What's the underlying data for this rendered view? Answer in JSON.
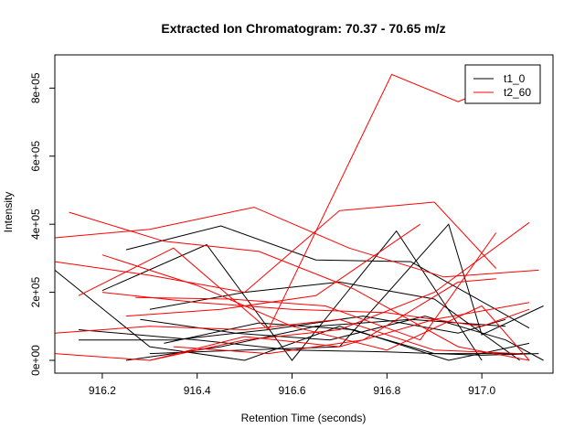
{
  "chart_data": {
    "type": "line",
    "title": "Extracted Ion Chromatogram: 70.37 - 70.65 m/z",
    "xlabel": "Retention Time (seconds)",
    "ylabel": "Intensity",
    "xlim": [
      916.1,
      917.15
    ],
    "ylim": [
      0,
      860000
    ],
    "x_ticks": [
      916.2,
      916.4,
      916.6,
      916.8,
      917.0
    ],
    "x_tick_labels": [
      "916.2",
      "916.4",
      "916.6",
      "916.8",
      "917.0"
    ],
    "y_ticks": [
      0,
      200000,
      400000,
      600000,
      800000
    ],
    "y_tick_labels": [
      "0e+00",
      "2e+05",
      "4e+05",
      "6e+05",
      "8e+05"
    ],
    "grid": false,
    "legend_position": "top-right",
    "colors": {
      "t1_0": "#000000",
      "t2_60": "#ff0000"
    },
    "series": [
      {
        "name": "t1_0",
        "lines": [
          [
            [
              916.1,
              265000
            ],
            [
              916.3,
              40000
            ],
            [
              916.5,
              0
            ],
            [
              916.7,
              100000
            ],
            [
              916.9,
              20000
            ],
            [
              917.1,
              20000
            ]
          ],
          [
            [
              916.15,
              60000
            ],
            [
              916.35,
              60000
            ],
            [
              916.55,
              90000
            ],
            [
              916.75,
              130000
            ],
            [
              916.95,
              80000
            ],
            [
              917.05,
              120000
            ]
          ],
          [
            [
              916.25,
              325000
            ],
            [
              916.45,
              395000
            ],
            [
              916.65,
              295000
            ],
            [
              916.85,
              290000
            ],
            [
              917.1,
              95000
            ]
          ],
          [
            [
              916.2,
              205000
            ],
            [
              916.42,
              340000
            ],
            [
              916.6,
              0
            ],
            [
              916.82,
              380000
            ],
            [
              917.0,
              0
            ]
          ],
          [
            [
              916.28,
              120000
            ],
            [
              916.48,
              80000
            ],
            [
              916.68,
              60000
            ],
            [
              916.88,
              130000
            ],
            [
              917.05,
              60000
            ],
            [
              917.13,
              0
            ]
          ],
          [
            [
              916.3,
              20000
            ],
            [
              916.5,
              30000
            ],
            [
              916.7,
              40000
            ],
            [
              916.93,
              400000
            ],
            [
              917.0,
              75000
            ],
            [
              917.13,
              160000
            ]
          ],
          [
            [
              916.15,
              90000
            ],
            [
              916.4,
              60000
            ],
            [
              916.6,
              30000
            ],
            [
              916.8,
              25000
            ],
            [
              917.0,
              15000
            ],
            [
              917.12,
              20000
            ]
          ],
          [
            [
              916.25,
              0
            ],
            [
              916.45,
              40000
            ],
            [
              916.65,
              100000
            ],
            [
              916.85,
              120000
            ],
            [
              917.05,
              100000
            ]
          ],
          [
            [
              916.3,
              150000
            ],
            [
              916.5,
              200000
            ],
            [
              916.7,
              230000
            ],
            [
              916.9,
              180000
            ],
            [
              917.08,
              0
            ]
          ],
          [
            [
              916.33,
              50000
            ],
            [
              916.53,
              110000
            ],
            [
              916.73,
              90000
            ],
            [
              916.93,
              0
            ],
            [
              917.1,
              50000
            ]
          ]
        ]
      },
      {
        "name": "t2_60",
        "lines": [
          [
            [
              916.1,
              360000
            ],
            [
              916.3,
              385000
            ],
            [
              916.52,
              450000
            ],
            [
              916.72,
              330000
            ],
            [
              916.92,
              245000
            ],
            [
              917.12,
              265000
            ]
          ],
          [
            [
              916.13,
              435000
            ],
            [
              916.33,
              350000
            ],
            [
              916.53,
              320000
            ],
            [
              916.73,
              210000
            ],
            [
              916.95,
              40000
            ],
            [
              917.1,
              0
            ]
          ],
          [
            [
              916.1,
              290000
            ],
            [
              916.3,
              250000
            ],
            [
              916.5,
              200000
            ],
            [
              916.7,
              440000
            ],
            [
              916.9,
              465000
            ],
            [
              917.03,
              270000
            ]
          ],
          [
            [
              916.15,
              190000
            ],
            [
              916.35,
              330000
            ],
            [
              916.55,
              90000
            ],
            [
              916.81,
              840000
            ],
            [
              916.95,
              760000
            ],
            [
              917.08,
              835000
            ]
          ],
          [
            [
              916.1,
              20000
            ],
            [
              916.3,
              0
            ],
            [
              916.5,
              70000
            ],
            [
              916.7,
              40000
            ],
            [
              916.9,
              120000
            ],
            [
              917.1,
              170000
            ]
          ],
          [
            [
              916.2,
              310000
            ],
            [
              916.4,
              220000
            ],
            [
              916.6,
              100000
            ],
            [
              916.8,
              30000
            ],
            [
              917.0,
              160000
            ],
            [
              917.1,
              0
            ]
          ],
          [
            [
              916.25,
              130000
            ],
            [
              916.45,
              150000
            ],
            [
              916.65,
              190000
            ],
            [
              916.87,
              400000
            ]
          ],
          [
            [
              916.27,
              185000
            ],
            [
              916.47,
              180000
            ],
            [
              916.67,
              160000
            ],
            [
              916.87,
              60000
            ],
            [
              917.03,
              375000
            ]
          ],
          [
            [
              916.3,
              0
            ],
            [
              916.5,
              60000
            ],
            [
              916.7,
              90000
            ],
            [
              916.9,
              200000
            ],
            [
              917.1,
              405000
            ]
          ],
          [
            [
              916.1,
              80000
            ],
            [
              916.3,
              100000
            ],
            [
              916.5,
              90000
            ],
            [
              916.7,
              120000
            ],
            [
              916.9,
              30000
            ],
            [
              917.08,
              20000
            ]
          ],
          [
            [
              916.35,
              40000
            ],
            [
              916.55,
              20000
            ],
            [
              916.75,
              60000
            ],
            [
              916.95,
              230000
            ],
            [
              917.03,
              240000
            ]
          ],
          [
            [
              916.2,
              200000
            ],
            [
              916.4,
              170000
            ],
            [
              916.6,
              150000
            ],
            [
              916.8,
              140000
            ],
            [
              917.0,
              100000
            ],
            [
              917.1,
              150000
            ]
          ]
        ]
      }
    ]
  }
}
